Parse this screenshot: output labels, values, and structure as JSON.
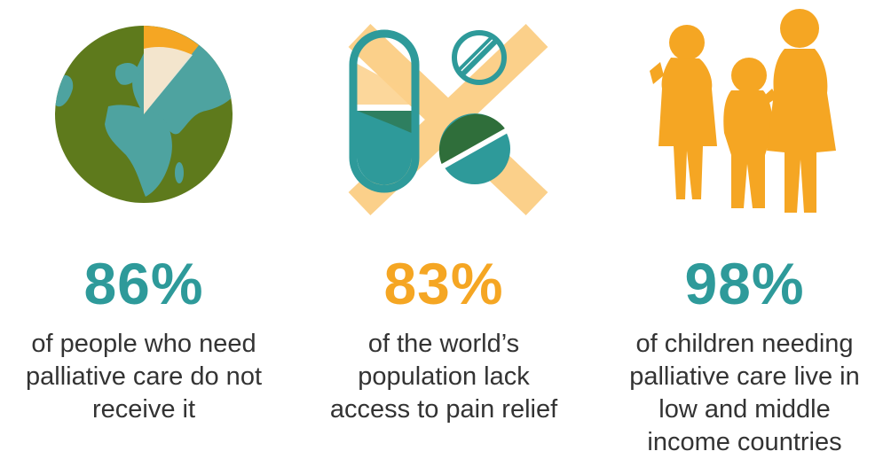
{
  "colors": {
    "teal": "#2e9a9a",
    "orange": "#f5a623",
    "olive": "#5e7a1c",
    "light_orange": "#fbd08a",
    "dark_green": "#2f6e3a"
  },
  "stats": [
    {
      "value": "86%",
      "color": "#2e9a9a",
      "lines": [
        "of people who need",
        "palliative care do not",
        "receive it"
      ],
      "icon": "globe-icon"
    },
    {
      "value": "83%",
      "color": "#f5a623",
      "lines": [
        "of the world’s",
        "population lack",
        "access to pain relief"
      ],
      "icon": "crossed-out-pills-icon"
    },
    {
      "value": "98%",
      "color": "#2e9a9a",
      "lines": [
        "of children needing",
        "palliative care live in",
        "low and middle",
        "income countries"
      ],
      "icon": "children-silhouette-icon"
    }
  ]
}
